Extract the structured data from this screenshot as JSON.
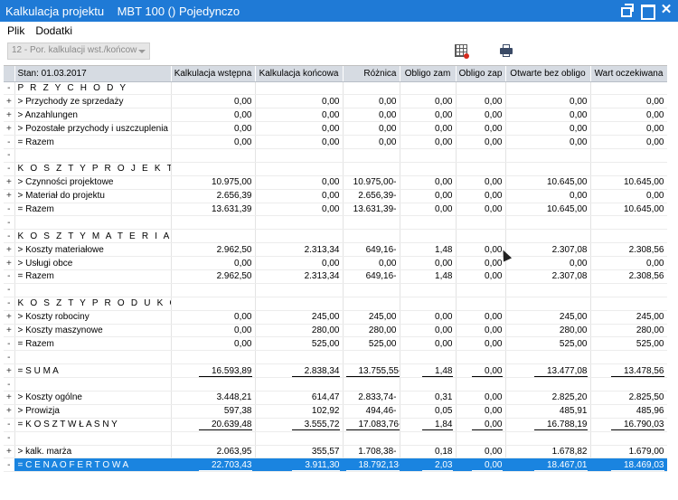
{
  "window": {
    "title": "Kalkulacja projektu    MBT 100 () Pojedynczo"
  },
  "menu": {
    "items": [
      "Plik",
      "Dodatki"
    ]
  },
  "toolbar": {
    "combo_value": "12 - Por. kalkulacji wst./końcow"
  },
  "table": {
    "headers": [
      "Stan: 01.03.2017",
      "Kalkulacja wstępna",
      "Kalkulacja końcowa",
      "Różnica",
      "Obligo zam",
      "Obligo zap",
      "Otwarte bez obligo",
      "Wart oczekiwana"
    ],
    "rows": [
      {
        "mk": "-",
        "label": "P R Z Y C H O D Y",
        "type": "section",
        "values": [
          "",
          "",
          "",
          "",
          "",
          "",
          ""
        ]
      },
      {
        "mk": "+",
        "label": "> Przychody ze sprzedaży",
        "type": "row",
        "values": [
          "0,00",
          "0,00",
          "0,00",
          "0,00",
          "0,00",
          "0,00",
          "0,00"
        ]
      },
      {
        "mk": "+",
        "label": "> Anzahlungen",
        "type": "row",
        "values": [
          "0,00",
          "0,00",
          "0,00",
          "0,00",
          "0,00",
          "0,00",
          "0,00"
        ]
      },
      {
        "mk": "+",
        "label": "> Pozostałe przychody i uszczuplenia",
        "type": "row",
        "values": [
          "0,00",
          "0,00",
          "0,00",
          "0,00",
          "0,00",
          "0,00",
          "0,00"
        ]
      },
      {
        "mk": "-",
        "label": "= Razem",
        "type": "row",
        "values": [
          "0,00",
          "0,00",
          "0,00",
          "0,00",
          "0,00",
          "0,00",
          "0,00"
        ]
      },
      {
        "mk": "-",
        "label": "",
        "type": "blank",
        "values": [
          "",
          "",
          "",
          "",
          "",
          "",
          ""
        ]
      },
      {
        "mk": "-",
        "label": "K O S Z T Y   P R O J E K T U",
        "type": "section",
        "values": [
          "",
          "",
          "",
          "",
          "",
          "",
          ""
        ]
      },
      {
        "mk": "+",
        "label": "> Czynności projektowe",
        "type": "row",
        "values": [
          "10.975,00",
          "0,00",
          "10.975,00-",
          "0,00",
          "0,00",
          "10.645,00",
          "10.645,00"
        ]
      },
      {
        "mk": "+",
        "label": "> Materiał do projektu",
        "type": "row",
        "values": [
          "2.656,39",
          "0,00",
          "2.656,39-",
          "0,00",
          "0,00",
          "0,00",
          "0,00"
        ]
      },
      {
        "mk": "-",
        "label": "= Razem",
        "type": "row",
        "values": [
          "13.631,39",
          "0,00",
          "13.631,39-",
          "0,00",
          "0,00",
          "10.645,00",
          "10.645,00"
        ]
      },
      {
        "mk": "-",
        "label": "",
        "type": "blank",
        "values": [
          "",
          "",
          "",
          "",
          "",
          "",
          ""
        ]
      },
      {
        "mk": "-",
        "label": "K O S Z T Y   M A T E R I A Ł O W E",
        "type": "section",
        "values": [
          "",
          "",
          "",
          "",
          "",
          "",
          ""
        ]
      },
      {
        "mk": "+",
        "label": "> Koszty materiałowe",
        "type": "row",
        "values": [
          "2.962,50",
          "2.313,34",
          "649,16-",
          "1,48",
          "0,00",
          "2.307,08",
          "2.308,56"
        ]
      },
      {
        "mk": "+",
        "label": "> Usługi obce",
        "type": "row",
        "values": [
          "0,00",
          "0,00",
          "0,00",
          "0,00",
          "0,00",
          "0,00",
          "0,00"
        ]
      },
      {
        "mk": "-",
        "label": "= Razem",
        "type": "row",
        "values": [
          "2.962,50",
          "2.313,34",
          "649,16-",
          "1,48",
          "0,00",
          "2.307,08",
          "2.308,56"
        ]
      },
      {
        "mk": "-",
        "label": "",
        "type": "blank",
        "values": [
          "",
          "",
          "",
          "",
          "",
          "",
          ""
        ]
      },
      {
        "mk": "-",
        "label": "K O S Z T Y   P R O D U K C J I",
        "type": "section",
        "values": [
          "",
          "",
          "",
          "",
          "",
          "",
          ""
        ]
      },
      {
        "mk": "+",
        "label": "> Koszty robociny",
        "type": "row",
        "values": [
          "0,00",
          "245,00",
          "245,00",
          "0,00",
          "0,00",
          "245,00",
          "245,00"
        ]
      },
      {
        "mk": "+",
        "label": "> Koszty maszynowe",
        "type": "row",
        "values": [
          "0,00",
          "280,00",
          "280,00",
          "0,00",
          "0,00",
          "280,00",
          "280,00"
        ]
      },
      {
        "mk": "-",
        "label": "= Razem",
        "type": "row",
        "values": [
          "0,00",
          "525,00",
          "525,00",
          "0,00",
          "0,00",
          "525,00",
          "525,00"
        ]
      },
      {
        "mk": "-",
        "label": "",
        "type": "blank",
        "values": [
          "",
          "",
          "",
          "",
          "",
          "",
          ""
        ]
      },
      {
        "mk": "+",
        "label": "= S U M A",
        "type": "total",
        "values": [
          "16.593,89",
          "2.838,34",
          "13.755,55-",
          "1,48",
          "0,00",
          "13.477,08",
          "13.478,56"
        ]
      },
      {
        "mk": "-",
        "label": "",
        "type": "blank",
        "values": [
          "",
          "",
          "",
          "",
          "",
          "",
          ""
        ]
      },
      {
        "mk": "+",
        "label": "> Koszty ogólne",
        "type": "row",
        "values": [
          "3.448,21",
          "614,47",
          "2.833,74-",
          "0,31",
          "0,00",
          "2.825,20",
          "2.825,50"
        ]
      },
      {
        "mk": "+",
        "label": "> Prowizja",
        "type": "row",
        "values": [
          "597,38",
          "102,92",
          "494,46-",
          "0,05",
          "0,00",
          "485,91",
          "485,96"
        ]
      },
      {
        "mk": "-",
        "label": "= K O S Z T   W Ł A S N Y",
        "type": "total",
        "values": [
          "20.639,48",
          "3.555,72",
          "17.083,76-",
          "1,84",
          "0,00",
          "16.788,19",
          "16.790,03"
        ]
      },
      {
        "mk": "-",
        "label": "",
        "type": "blank",
        "values": [
          "",
          "",
          "",
          "",
          "",
          "",
          ""
        ]
      },
      {
        "mk": "+",
        "label": "> kalk. marża",
        "type": "row",
        "values": [
          "2.063,95",
          "355,57",
          "1.708,38-",
          "0,18",
          "0,00",
          "1.678,82",
          "1.679,00"
        ]
      },
      {
        "mk": "-",
        "label": "= C E N A   O F E R T O W A",
        "type": "total-sel",
        "values": [
          "22.703,43",
          "3.911,30",
          "18.792,13-",
          "2,03",
          "0,00",
          "18.467,01",
          "18.469,03"
        ]
      }
    ]
  }
}
